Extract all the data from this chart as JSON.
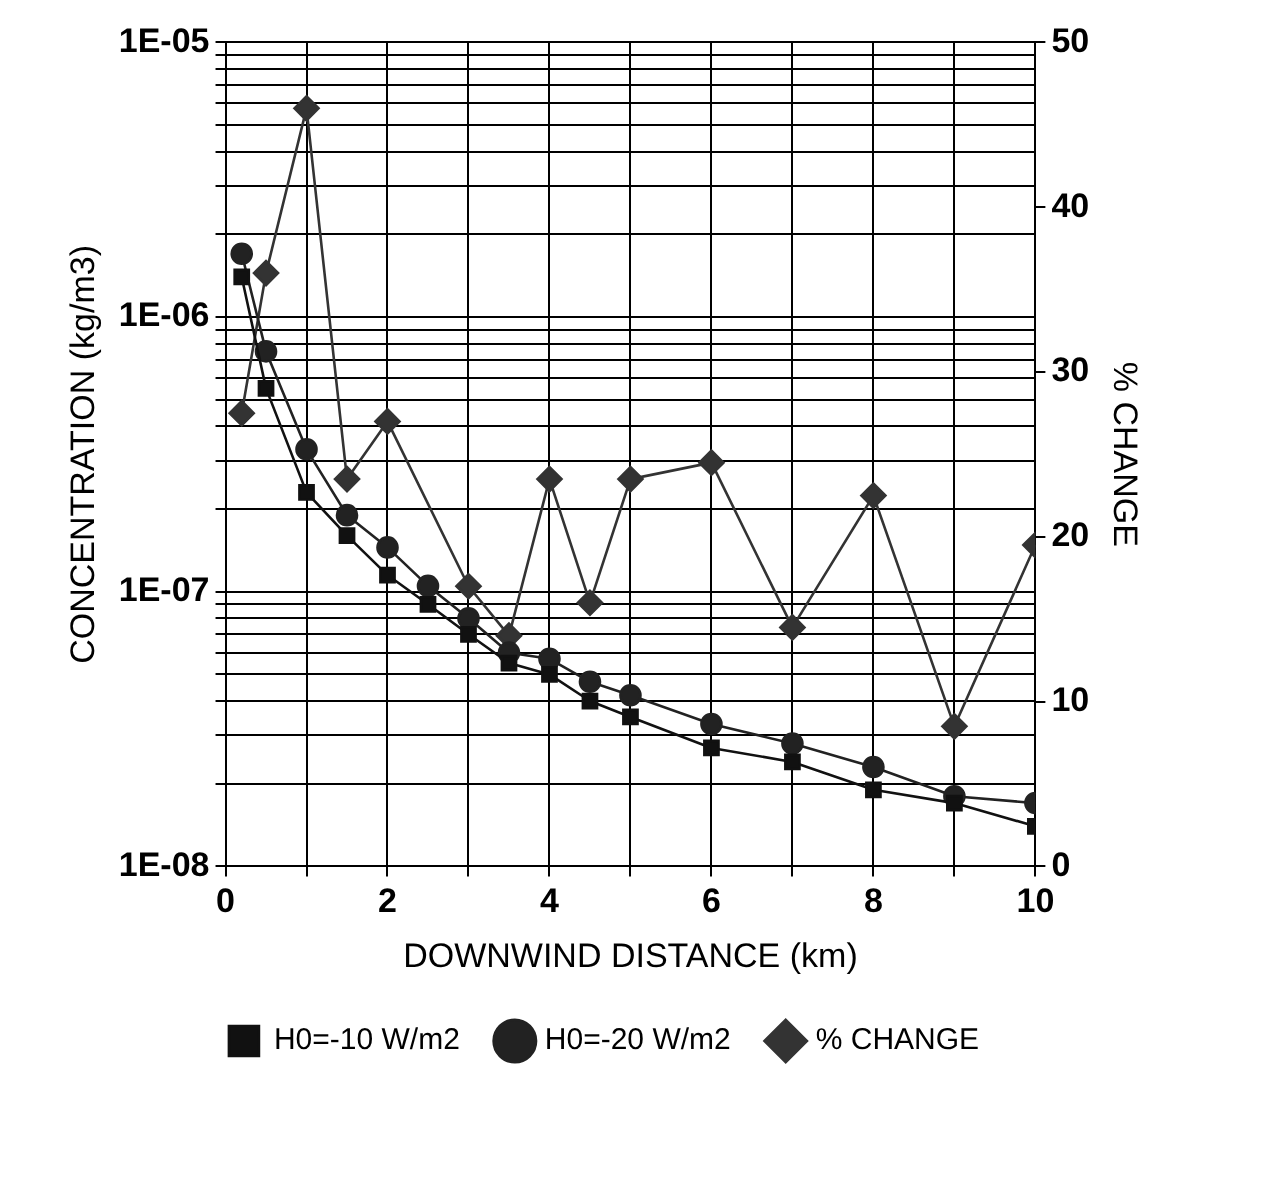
{
  "chart_data": {
    "type": "line",
    "xlabel": "DOWNWIND DISTANCE (km)",
    "ylabel": "CONCENTRATION (kg/m3)",
    "y2label": "% CHANGE",
    "log": "y",
    "grid": true,
    "legend": "bottom",
    "line_style": "solid",
    "xlim": [
      0,
      10
    ],
    "xticks": [
      0,
      {
        "value": 1,
        "label": null
      },
      2,
      {
        "value": 3,
        "label": null
      },
      4,
      {
        "value": 5,
        "label": null
      },
      6,
      {
        "value": 7,
        "label": null
      },
      8,
      {
        "value": 9,
        "label": null
      },
      10
    ],
    "ylim": [
      1e-08,
      1e-05
    ],
    "yticks": [
      {
        "value": 1e-08,
        "label": "1E-08"
      },
      {
        "value": 2e-08,
        "label": null
      },
      {
        "value": 3e-08,
        "label": null
      },
      {
        "value": 4e-08,
        "label": null
      },
      {
        "value": 5e-08,
        "label": null
      },
      {
        "value": 6e-08,
        "label": null
      },
      {
        "value": 7e-08,
        "label": null
      },
      {
        "value": 8e-08,
        "label": null
      },
      {
        "value": 9e-08,
        "label": null
      },
      {
        "value": 1e-07,
        "label": "1E-07"
      },
      {
        "value": 2e-07,
        "label": null
      },
      {
        "value": 3e-07,
        "label": null
      },
      {
        "value": 4e-07,
        "label": null
      },
      {
        "value": 5e-07,
        "label": null
      },
      {
        "value": 6e-07,
        "label": null
      },
      {
        "value": 7e-07,
        "label": null
      },
      {
        "value": 8e-07,
        "label": null
      },
      {
        "value": 9e-07,
        "label": null
      },
      {
        "value": 1e-06,
        "label": "1E-06"
      },
      {
        "value": 2e-06,
        "label": null
      },
      {
        "value": 3e-06,
        "label": null
      },
      {
        "value": 4e-06,
        "label": null
      },
      {
        "value": 5e-06,
        "label": null
      },
      {
        "value": 6e-06,
        "label": null
      },
      {
        "value": 7e-06,
        "label": null
      },
      {
        "value": 8e-06,
        "label": null
      },
      {
        "value": 9e-06,
        "label": null
      },
      {
        "value": 1e-05,
        "label": "1E-05"
      }
    ],
    "y2lim": [
      0,
      50
    ],
    "y2ticks": [
      0,
      10,
      20,
      30,
      40,
      50
    ],
    "series": [
      {
        "name": "H0=-10 W/m2",
        "color": "#111111",
        "marker": "square",
        "x": [
          0.2,
          0.5,
          1,
          1.5,
          2,
          2.5,
          3,
          3.5,
          4,
          4.5,
          5,
          6,
          7,
          8,
          9,
          10
        ],
        "values": [
          1.4e-06,
          5.5e-07,
          2.3e-07,
          1.6e-07,
          1.15e-07,
          9e-08,
          7e-08,
          5.5e-08,
          5e-08,
          4e-08,
          3.5e-08,
          2.7e-08,
          2.4e-08,
          1.9e-08,
          1.7e-08,
          1.4e-08
        ]
      },
      {
        "name": "H0=-20 W/m2",
        "color": "#222222",
        "marker": "circle",
        "x": [
          0.2,
          0.5,
          1,
          1.5,
          2,
          2.5,
          3,
          3.5,
          4,
          4.5,
          5,
          6,
          7,
          8,
          9,
          10
        ],
        "values": [
          1.7e-06,
          7.5e-07,
          3.3e-07,
          1.9e-07,
          1.45e-07,
          1.05e-07,
          8e-08,
          6e-08,
          5.7e-08,
          4.7e-08,
          4.2e-08,
          3.3e-08,
          2.8e-08,
          2.3e-08,
          1.8e-08,
          1.7e-08
        ]
      },
      {
        "name": "% CHANGE",
        "color": "#333333",
        "marker": "diamond",
        "axis": "y2",
        "x": [
          0.2,
          0.5,
          1,
          1.5,
          2,
          3,
          3.5,
          4,
          4.5,
          5,
          6,
          7,
          8,
          9,
          10
        ],
        "values": [
          27.5,
          36,
          46,
          23.5,
          27,
          17,
          14,
          23.5,
          16,
          23.5,
          24.5,
          14.5,
          22.5,
          8.5,
          19.5
        ]
      }
    ]
  }
}
